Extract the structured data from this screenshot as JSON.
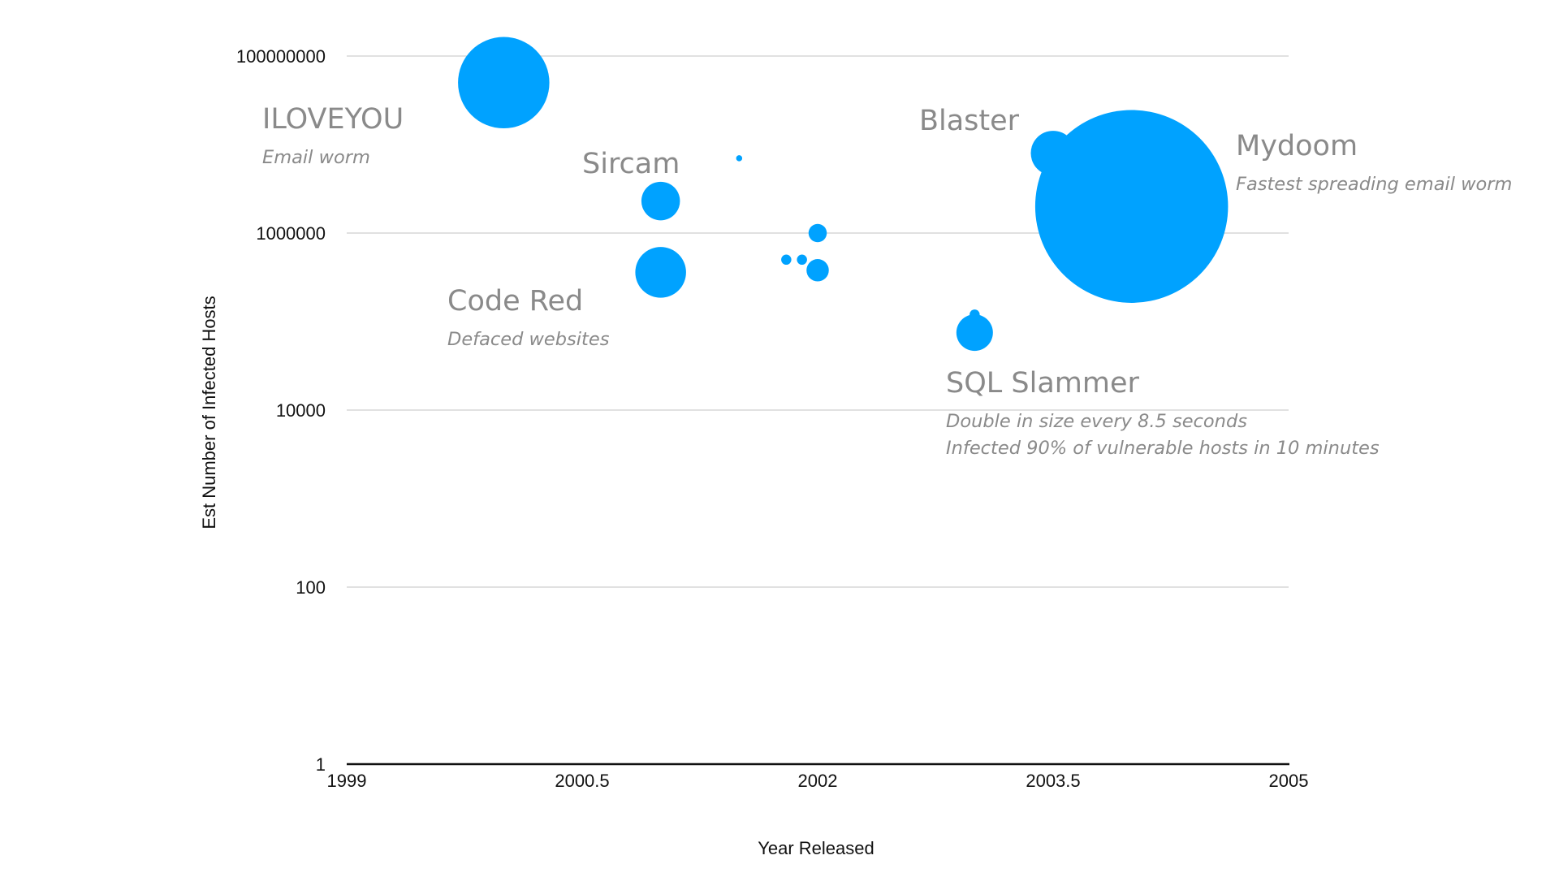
{
  "chart_data": {
    "type": "scatter",
    "title": "",
    "xlabel": "Year Released",
    "ylabel": "Est Number of Infected Hosts",
    "xlim": [
      1999,
      2005
    ],
    "ylim": [
      1,
      100000000
    ],
    "y_scale": "log",
    "x_ticks": [
      "1999",
      "2000.5",
      "2002",
      "2003.5",
      "2005"
    ],
    "y_ticks": [
      "1",
      "100",
      "10000",
      "1000000",
      "100000000"
    ],
    "grid": true,
    "bubble_color": "#00A2FF",
    "points": [
      {
        "x": 2000.0,
        "y": 50000000,
        "size": 45
      },
      {
        "x": 2001.0,
        "y": 2300000,
        "size": 19
      },
      {
        "x": 2001.0,
        "y": 360000,
        "size": 25
      },
      {
        "x": 2001.5,
        "y": 7000000,
        "size": 3
      },
      {
        "x": 2001.8,
        "y": 500000,
        "size": 5
      },
      {
        "x": 2001.9,
        "y": 500000,
        "size": 5
      },
      {
        "x": 2002.0,
        "y": 1000000,
        "size": 9
      },
      {
        "x": 2002.0,
        "y": 380000,
        "size": 11
      },
      {
        "x": 2003.0,
        "y": 120000,
        "size": 5
      },
      {
        "x": 2003.0,
        "y": 75000,
        "size": 18
      },
      {
        "x": 2003.5,
        "y": 8000000,
        "size": 22
      },
      {
        "x": 2004.0,
        "y": 2000000,
        "size": 95
      }
    ],
    "annotations": [
      {
        "name": "iloveyou",
        "title": "ILOVEYOU",
        "lines": [
          "Email worm"
        ]
      },
      {
        "name": "sircam",
        "title": "Sircam",
        "lines": []
      },
      {
        "name": "code-red",
        "title": "Code Red",
        "lines": [
          "Defaced websites"
        ]
      },
      {
        "name": "blaster",
        "title": "Blaster",
        "lines": []
      },
      {
        "name": "mydoom",
        "title": "Mydoom",
        "lines": [
          "Fastest spreading email worm"
        ]
      },
      {
        "name": "sql-slammer",
        "title": "SQL Slammer",
        "lines": [
          "Double in size every 8.5 seconds",
          "Infected 90% of vulnerable hosts in 10 minutes"
        ]
      }
    ]
  }
}
